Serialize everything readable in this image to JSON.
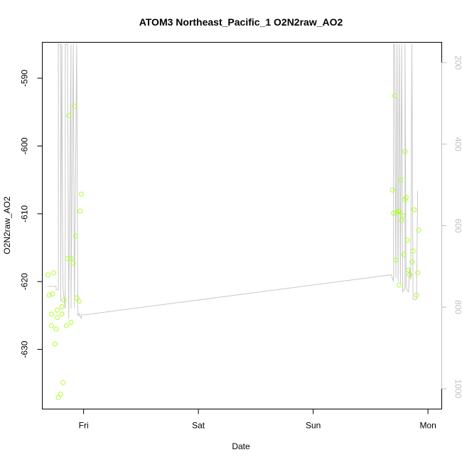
{
  "chart_data": {
    "type": "scatter",
    "title": "ATOM3 Northeast_Pacific_1 O2N2raw_AO2",
    "xlabel": "Date",
    "ylabel": "O2N2raw_AO2",
    "x_ticks": [
      "Fri",
      "Sat",
      "Sun",
      "Mon"
    ],
    "x_tick_values": [
      0,
      1,
      2,
      3
    ],
    "xlim": [
      -0.36,
      3.12
    ],
    "y_ticks": [
      "-630",
      "-620",
      "-610",
      "-600",
      "-590"
    ],
    "y_tick_values": [
      -630,
      -620,
      -610,
      -600,
      -590
    ],
    "ylim": [
      -638.8,
      -584.7
    ],
    "right_ticks": [
      "200",
      "400",
      "600",
      "800",
      "1000"
    ],
    "right_tick_values": [
      200,
      400,
      600,
      800,
      1000
    ],
    "right_lim": [
      1050,
      150
    ],
    "grid": false,
    "colors": {
      "points": "#adff2f",
      "line": "#c8c8c8",
      "axis": "#000000",
      "right_axis": "#c0c0c0"
    },
    "series": [
      {
        "role": "points",
        "x": [
          -0.31,
          -0.3,
          -0.28,
          -0.28,
          -0.27,
          -0.26,
          -0.25,
          -0.24,
          -0.23,
          -0.23,
          -0.22,
          -0.2,
          -0.19,
          -0.19,
          -0.18,
          -0.17,
          -0.15,
          -0.14,
          -0.13,
          -0.11,
          -0.11,
          -0.09,
          -0.08,
          -0.07,
          -0.06,
          -0.04,
          -0.03,
          -0.02,
          2.69,
          2.7,
          2.71,
          2.72,
          2.73,
          2.74,
          2.75,
          2.75,
          2.76,
          2.77,
          2.78,
          2.79,
          2.8,
          2.8,
          2.81,
          2.82,
          2.83,
          2.84,
          2.86,
          2.87,
          2.88,
          2.9,
          2.91,
          2.92
        ],
        "y": [
          -619.0,
          -622.0,
          -626.5,
          -624.8,
          -621.8,
          -618.7,
          -629.2,
          -627.0,
          -625.3,
          -624.2,
          -637.1,
          -636.6,
          -623.7,
          -624.8,
          -634.9,
          -622.7,
          -626.5,
          -616.6,
          -595.5,
          -616.6,
          -626.0,
          -617.3,
          -594.1,
          -613.3,
          -622.4,
          -622.9,
          -609.6,
          -607.1,
          -606.5,
          -609.9,
          -592.6,
          -616.8,
          -609.9,
          -609.6,
          -620.5,
          -609.7,
          -605.0,
          -611.0,
          -610.3,
          -616.0,
          -607.9,
          -600.8,
          -607.6,
          -613.9,
          -618.3,
          -619.0,
          -617.1,
          -615.5,
          -609.4,
          -622.0,
          -618.7,
          -612.4
        ]
      },
      {
        "role": "line",
        "x": [
          -0.31,
          -0.24,
          -0.24,
          -0.22,
          -0.22,
          -0.2,
          -0.2,
          -0.19,
          -0.18,
          -0.16,
          -0.16,
          -0.14,
          -0.13,
          -0.11,
          -0.11,
          -0.09,
          -0.08,
          -0.06,
          -0.05,
          -0.04,
          -0.03,
          -0.02,
          -0.02,
          0.01,
          2.68,
          2.7,
          2.7,
          2.71,
          2.72,
          2.73,
          2.74,
          2.75,
          2.76,
          2.77,
          2.78,
          2.8,
          2.8,
          2.81,
          2.83,
          2.84,
          2.85,
          2.86,
          2.87,
          2.88,
          2.89,
          2.9,
          2.91
        ],
        "y": [
          -620.7,
          -620.7,
          -621.2,
          -621.2,
          -585,
          -585,
          -623.0,
          -585,
          -621.0,
          -624.0,
          -585,
          -585,
          -625.5,
          -585,
          -624.0,
          -585,
          -624.0,
          -585,
          -625.0,
          -624.7,
          -625.2,
          -625.4,
          -624.9,
          -624.9,
          -619.0,
          -620.0,
          -585,
          -585,
          -619.5,
          -585,
          -620.0,
          -585,
          -620.3,
          -585,
          -621.5,
          -620.9,
          -585,
          -621.0,
          -621.5,
          -618.0,
          -619.7,
          -585,
          -622.6,
          -622.6,
          -622.7,
          -622.6,
          -606.6
        ]
      }
    ]
  }
}
